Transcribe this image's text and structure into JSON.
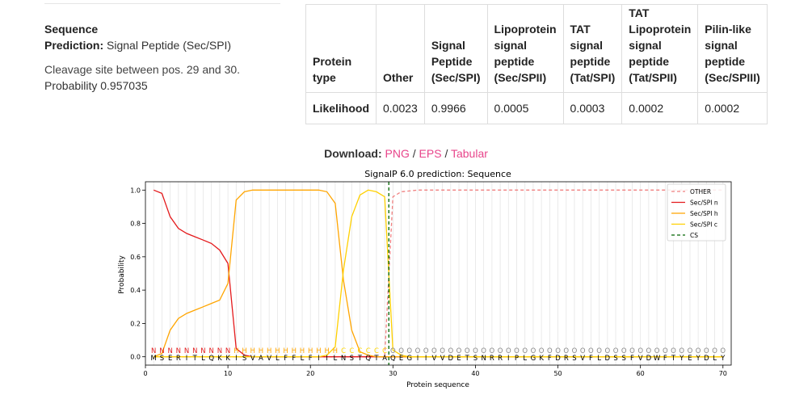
{
  "summary": {
    "title": "Sequence",
    "prediction_label": "Prediction:",
    "prediction_value": "Signal Peptide (Sec/SPI)",
    "cleavage": "Cleavage site between pos. 29 and 30.",
    "probability": "Probability 0.957035"
  },
  "table": {
    "headers": [
      [
        "Protein",
        "type"
      ],
      [
        "Other"
      ],
      [
        "Signal",
        "Peptide",
        "(Sec/SPI)"
      ],
      [
        "Lipoprotein",
        "signal",
        "peptide",
        "(Sec/SPII)"
      ],
      [
        "TAT",
        "signal",
        "peptide",
        "(Tat/SPI)"
      ],
      [
        "TAT",
        "Lipoprotein",
        "signal",
        "peptide",
        "(Tat/SPII)"
      ],
      [
        "Pilin-like",
        "signal",
        "peptide",
        "(Sec/SPIII)"
      ]
    ],
    "row_label": "Likelihood",
    "values": [
      "0.0023",
      "0.9966",
      "0.0005",
      "0.0003",
      "0.0002",
      "0.0002"
    ]
  },
  "download": {
    "label": "Download:",
    "links": [
      "PNG",
      "EPS",
      "Tabular"
    ],
    "separator": "/"
  },
  "chart_data": {
    "type": "line",
    "title": "SignalP 6.0 prediction: Sequence",
    "xlabel": "Protein sequence",
    "ylabel": "Probability",
    "xlim": [
      0,
      71
    ],
    "ylim": [
      -0.05,
      1.05
    ],
    "xticks": [
      0,
      10,
      20,
      30,
      40,
      50,
      60,
      70
    ],
    "yticks": [
      0.0,
      0.2,
      0.4,
      0.6,
      0.8,
      1.0
    ],
    "grid": "vertical lines at each residue",
    "legend_position": "top-right",
    "sequence": "MSERITLQKKISVAVLFFLFIILNSTQTAQEGIIVVDETSNRRIPLGKFDRSVFLDSSFVDWFTYEYDLY",
    "region_labels": "NNNNNNNNNNHHHHHHHHHHHHHCCCCCCOOOOOOOOOOOOOOOOOOOOOOOOOOOOOOOOOOOOOOOOO",
    "region_colors": {
      "N": "#e41a1c",
      "H": "#ffa500",
      "C": "#ffd700",
      "O": "#888888"
    },
    "x": [
      1,
      2,
      3,
      4,
      5,
      6,
      7,
      8,
      9,
      10,
      11,
      12,
      13,
      14,
      15,
      16,
      17,
      18,
      19,
      20,
      21,
      22,
      23,
      24,
      25,
      26,
      27,
      28,
      29,
      30,
      31,
      32,
      33,
      34,
      35,
      36,
      37,
      38,
      39,
      40,
      41,
      42,
      43,
      44,
      45,
      46,
      47,
      48,
      49,
      50,
      51,
      52,
      53,
      54,
      55,
      56,
      57,
      58,
      59,
      60,
      61,
      62,
      63,
      64,
      65,
      66,
      67,
      68,
      69,
      70
    ],
    "series": [
      {
        "name": "OTHER",
        "color": "#f08080",
        "dash": "4,3",
        "values": [
          0,
          0,
          0,
          0,
          0,
          0,
          0,
          0,
          0,
          0,
          0,
          0,
          0,
          0,
          0,
          0,
          0,
          0,
          0,
          0,
          0,
          0,
          0,
          0,
          0,
          0,
          0,
          0,
          0,
          0.96,
          0.99,
          0.995,
          1,
          1,
          1,
          1,
          1,
          1,
          1,
          1,
          1,
          1,
          1,
          1,
          1,
          1,
          1,
          1,
          1,
          1,
          1,
          1,
          1,
          1,
          1,
          1,
          1,
          1,
          1,
          1,
          1,
          1,
          1,
          1,
          1,
          1,
          1,
          1,
          1,
          1
        ]
      },
      {
        "name": "Sec/SPI n",
        "color": "#e41a1c",
        "dash": "",
        "values": [
          1.0,
          0.98,
          0.84,
          0.77,
          0.74,
          0.72,
          0.7,
          0.68,
          0.64,
          0.56,
          0.05,
          0.01,
          0,
          0,
          0,
          0,
          0,
          0,
          0,
          0,
          0,
          0,
          0,
          0,
          0,
          0,
          0,
          0,
          0,
          0,
          0,
          0,
          0,
          0,
          0,
          0,
          0,
          0,
          0,
          0,
          0,
          0,
          0,
          0,
          0,
          0,
          0,
          0,
          0,
          0,
          0,
          0,
          0,
          0,
          0,
          0,
          0,
          0,
          0,
          0,
          0,
          0,
          0,
          0,
          0,
          0,
          0,
          0,
          0,
          0
        ]
      },
      {
        "name": "Sec/SPI h",
        "color": "#ffa500",
        "dash": "",
        "values": [
          0,
          0.02,
          0.16,
          0.23,
          0.26,
          0.28,
          0.3,
          0.32,
          0.34,
          0.44,
          0.94,
          0.99,
          1.0,
          1.0,
          1.0,
          1.0,
          1.0,
          1.0,
          1.0,
          1.0,
          1.0,
          0.99,
          0.92,
          0.46,
          0.16,
          0.03,
          0.01,
          0,
          0,
          0,
          0,
          0,
          0,
          0,
          0,
          0,
          0,
          0,
          0,
          0,
          0,
          0,
          0,
          0,
          0,
          0,
          0,
          0,
          0,
          0,
          0,
          0,
          0,
          0,
          0,
          0,
          0,
          0,
          0,
          0,
          0,
          0,
          0,
          0,
          0,
          0,
          0,
          0,
          0,
          0
        ]
      },
      {
        "name": "Sec/SPI c",
        "color": "#ffd000",
        "dash": "",
        "values": [
          0,
          0,
          0,
          0,
          0,
          0,
          0,
          0,
          0,
          0,
          0,
          0,
          0,
          0,
          0,
          0,
          0,
          0,
          0,
          0,
          0,
          0.01,
          0.06,
          0.52,
          0.84,
          0.97,
          1.0,
          0.99,
          0.96,
          0.04,
          0.01,
          0,
          0,
          0,
          0,
          0,
          0,
          0,
          0,
          0,
          0,
          0,
          0,
          0,
          0,
          0,
          0,
          0,
          0,
          0,
          0,
          0,
          0,
          0,
          0,
          0,
          0,
          0,
          0,
          0,
          0,
          0,
          0,
          0,
          0,
          0,
          0,
          0,
          0,
          0
        ]
      },
      {
        "name": "CS",
        "color": "#006400",
        "dash": "4,3",
        "cleavage_x": 29.5
      }
    ]
  }
}
